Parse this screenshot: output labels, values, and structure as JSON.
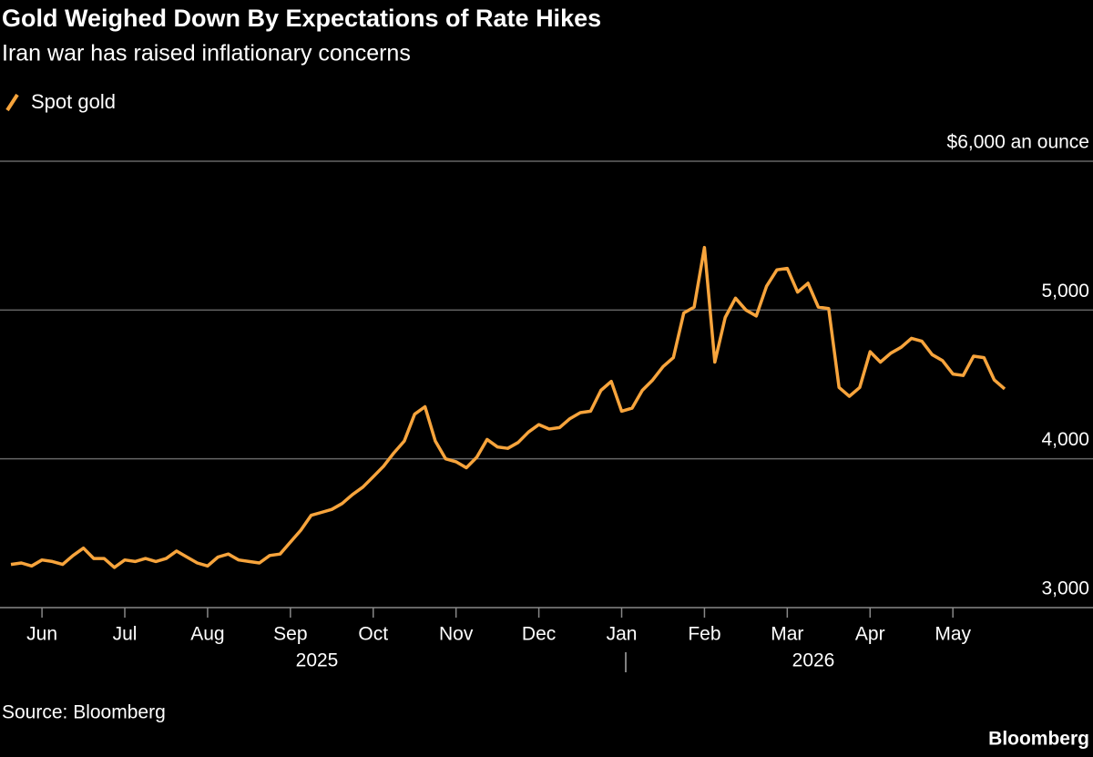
{
  "chart_data": {
    "type": "line",
    "title": "Gold Weighed Down By Expectations of Rate Hikes",
    "subtitle": "Iran war has raised inflationary concerns",
    "categories": [
      null,
      null,
      null,
      "Jun",
      null,
      null,
      null,
      null,
      null,
      null,
      null,
      "Jul",
      null,
      null,
      null,
      null,
      null,
      null,
      null,
      "Aug",
      null,
      null,
      null,
      null,
      null,
      null,
      null,
      "Sep",
      null,
      null,
      null,
      null,
      null,
      null,
      null,
      "Oct",
      null,
      null,
      null,
      null,
      null,
      null,
      null,
      "Nov",
      null,
      null,
      null,
      null,
      null,
      null,
      null,
      "Dec",
      null,
      null,
      null,
      null,
      null,
      null,
      null,
      "Jan",
      null,
      null,
      null,
      null,
      null,
      null,
      null,
      "Feb",
      null,
      null,
      null,
      null,
      null,
      null,
      null,
      "Mar",
      null,
      null,
      null,
      null,
      null,
      null,
      null,
      "Apr",
      null,
      null,
      null,
      null,
      null,
      null,
      null,
      "May",
      null,
      null,
      null,
      null,
      null
    ],
    "years": [
      "2025",
      "2026"
    ],
    "series": [
      {
        "name": "Spot gold",
        "color": "#f7a43c",
        "values": [
          3290,
          3300,
          3280,
          3320,
          3310,
          3290,
          3350,
          3400,
          3330,
          3330,
          3270,
          3320,
          3310,
          3330,
          3310,
          3330,
          3380,
          3340,
          3300,
          3280,
          3340,
          3360,
          3320,
          3310,
          3300,
          3350,
          3360,
          3440,
          3520,
          3620,
          3640,
          3660,
          3700,
          3760,
          3810,
          3880,
          3950,
          4040,
          4120,
          4300,
          4350,
          4120,
          4000,
          3980,
          3940,
          4010,
          4130,
          4080,
          4070,
          4110,
          4180,
          4230,
          4200,
          4210,
          4270,
          4310,
          4320,
          4460,
          4520,
          4320,
          4340,
          4460,
          4530,
          4620,
          4680,
          4980,
          5020,
          5420,
          4650,
          4950,
          5080,
          5000,
          4960,
          5160,
          5270,
          5280,
          5120,
          5180,
          5020,
          5010,
          4480,
          4420,
          4480,
          4720,
          4650,
          4710,
          4750,
          4810,
          4790,
          4700,
          4660,
          4570,
          4560,
          4690,
          4680,
          4530,
          4470
        ]
      }
    ],
    "ylim": [
      3000,
      6000
    ],
    "yticks": [
      {
        "value": 3000,
        "label": "3,000"
      },
      {
        "value": 4000,
        "label": "4,000"
      },
      {
        "value": 5000,
        "label": "5,000"
      },
      {
        "value": 6000,
        "label": "$6,000 an ounce"
      }
    ],
    "grid": true,
    "source": "Source: Bloomberg",
    "credit": "Bloomberg"
  }
}
